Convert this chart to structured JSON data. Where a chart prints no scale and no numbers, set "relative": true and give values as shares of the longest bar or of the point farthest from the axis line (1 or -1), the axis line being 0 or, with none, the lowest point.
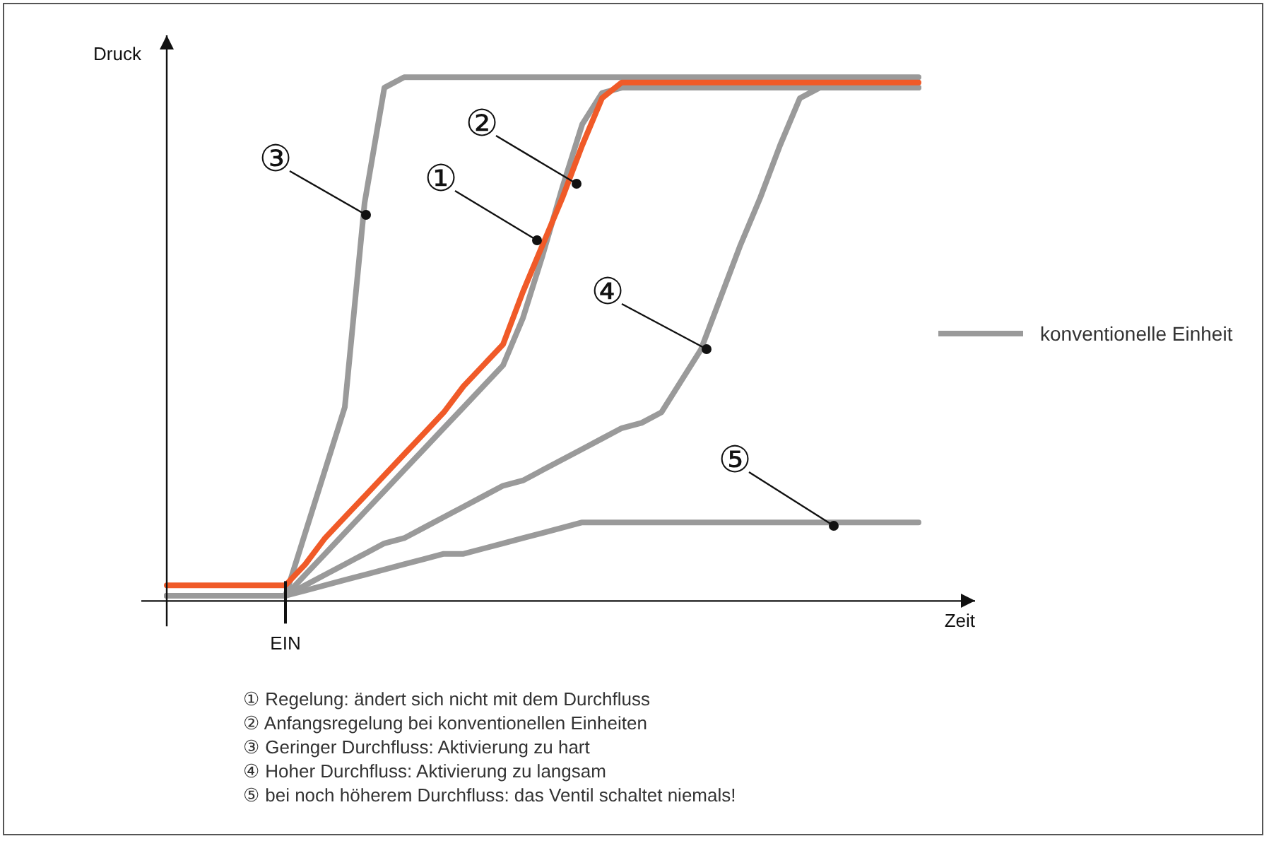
{
  "chart_data": {
    "type": "line",
    "relative": true,
    "xlabel": "Zeit",
    "ylabel": "Druck",
    "legend": "right",
    "categories": [
      null,
      null,
      null,
      null,
      null,
      null,
      null,
      null,
      null,
      null,
      null,
      null,
      null,
      null,
      null,
      null,
      null,
      null,
      null,
      null,
      null,
      null,
      null,
      null,
      null,
      null,
      null,
      null,
      null,
      null,
      null,
      null,
      null,
      null,
      null,
      null,
      null,
      null,
      null
    ],
    "series": [
      {
        "color": "#f05a28",
        "values": [
          0.03,
          0.03,
          0.03,
          0.03,
          0.03,
          0.03,
          0.03,
          0.07,
          0.12,
          0.16,
          0.2,
          0.24,
          0.28,
          0.32,
          0.36,
          0.41,
          0.45,
          0.49,
          0.59,
          0.68,
          0.77,
          0.87,
          0.96,
          0.99,
          0.99,
          0.99,
          0.99,
          0.99,
          0.99,
          0.99,
          0.99,
          0.99,
          0.99,
          0.99,
          0.99,
          0.99,
          0.99,
          0.99,
          0.99
        ]
      },
      {
        "name": "konventionelle Einheit",
        "color": "#9a9a9a",
        "values": [
          0.01,
          0.01,
          0.01,
          0.01,
          0.01,
          0.01,
          0.01,
          0.05,
          0.09,
          0.13,
          0.17,
          0.21,
          0.25,
          0.29,
          0.33,
          0.37,
          0.41,
          0.45,
          0.54,
          0.66,
          0.79,
          0.91,
          0.97,
          0.98,
          0.98,
          0.98,
          0.98,
          0.98,
          0.98,
          0.98,
          0.98,
          0.98,
          0.98,
          0.98,
          0.98,
          0.98,
          0.98,
          0.98,
          0.98
        ]
      },
      {
        "color": "#9a9a9a",
        "values": [
          0.01,
          0.01,
          0.01,
          0.01,
          0.01,
          0.01,
          0.01,
          0.13,
          0.25,
          0.37,
          0.76,
          0.98,
          1,
          1,
          1,
          1,
          1,
          1,
          1,
          1,
          1,
          1,
          1,
          1,
          1,
          1,
          1,
          1,
          1,
          1,
          1,
          1,
          1,
          1,
          1,
          1,
          1,
          1,
          1
        ]
      },
      {
        "color": "#9a9a9a",
        "values": [
          0.01,
          0.01,
          0.01,
          0.01,
          0.01,
          0.01,
          0.01,
          0.03,
          0.05,
          0.07,
          0.09,
          0.11,
          0.12,
          0.14,
          0.16,
          0.18,
          0.2,
          0.22,
          0.23,
          0.25,
          0.27,
          0.29,
          0.31,
          0.33,
          0.34,
          0.36,
          0.42,
          0.48,
          0.58,
          0.68,
          0.77,
          0.87,
          0.96,
          0.98,
          0.98,
          0.98,
          0.98,
          0.98,
          0.98
        ]
      },
      {
        "color": "#9a9a9a",
        "values": [
          0.01,
          0.01,
          0.01,
          0.01,
          0.01,
          0.01,
          0.01,
          0.02,
          0.03,
          0.04,
          0.05,
          0.06,
          0.07,
          0.08,
          0.09,
          0.09,
          0.1,
          0.11,
          0.12,
          0.13,
          0.14,
          0.15,
          0.15,
          0.15,
          0.15,
          0.15,
          0.15,
          0.15,
          0.15,
          0.15,
          0.15,
          0.15,
          0.15,
          0.15,
          0.15,
          0.15,
          0.15,
          0.15,
          0.15
        ]
      }
    ],
    "annotations": [
      "①",
      "②",
      "③",
      "④",
      "⑤",
      "EIN",
      "① Regelung: ändert sich nicht mit dem Durchfluss",
      "② Anfangsregelung bei konventionellen Einheiten",
      "③ Geringer Durchfluss: Aktivierung zu hart",
      "④ Hoher Durchfluss: Aktivierung zu langsam",
      "⑤ bei noch höherem Durchfluss: das Ventil schaltet niemals!"
    ]
  }
}
